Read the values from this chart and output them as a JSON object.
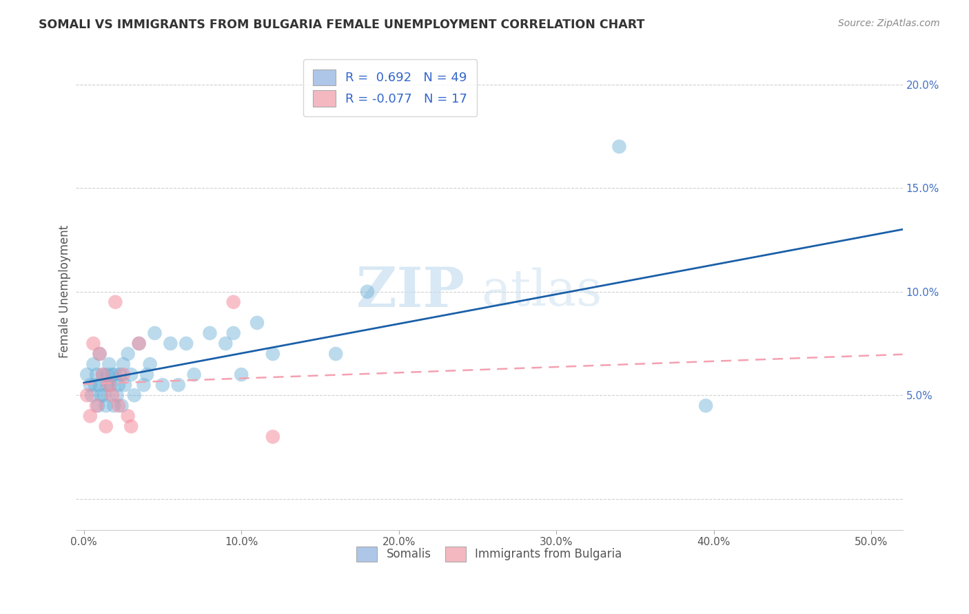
{
  "title": "SOMALI VS IMMIGRANTS FROM BULGARIA FEMALE UNEMPLOYMENT CORRELATION CHART",
  "source": "Source: ZipAtlas.com",
  "ylabel": "Female Unemployment",
  "x_ticks": [
    0.0,
    0.1,
    0.2,
    0.3,
    0.4,
    0.5
  ],
  "x_tick_labels": [
    "0.0%",
    "10.0%",
    "20.0%",
    "30.0%",
    "40.0%",
    "50.0%"
  ],
  "y_ticks": [
    0.0,
    0.05,
    0.1,
    0.15,
    0.2
  ],
  "y_tick_labels_right": [
    "",
    "5.0%",
    "10.0%",
    "15.0%",
    "20.0%"
  ],
  "xlim": [
    -0.005,
    0.52
  ],
  "ylim": [
    -0.015,
    0.215
  ],
  "legend_labels": [
    "R =  0.692   N = 49",
    "R = -0.077   N = 17"
  ],
  "legend_colors": [
    "#aec6e8",
    "#f4b8c1"
  ],
  "somali_color": "#6aaed6",
  "bulgaria_color": "#f48ea0",
  "somali_line_color": "#1a5fa8",
  "bulgaria_line_color": "#f4a0b0",
  "watermark_zip": "ZIP",
  "watermark_atlas": "atlas",
  "somali_x": [
    0.002,
    0.004,
    0.005,
    0.006,
    0.007,
    0.008,
    0.009,
    0.01,
    0.01,
    0.011,
    0.012,
    0.013,
    0.014,
    0.015,
    0.015,
    0.016,
    0.017,
    0.018,
    0.019,
    0.02,
    0.021,
    0.022,
    0.023,
    0.024,
    0.025,
    0.026,
    0.028,
    0.03,
    0.032,
    0.035,
    0.038,
    0.04,
    0.042,
    0.045,
    0.05,
    0.055,
    0.06,
    0.065,
    0.07,
    0.08,
    0.09,
    0.095,
    0.1,
    0.11,
    0.12,
    0.16,
    0.18,
    0.34,
    0.395
  ],
  "somali_y": [
    0.06,
    0.055,
    0.05,
    0.065,
    0.055,
    0.06,
    0.045,
    0.055,
    0.07,
    0.05,
    0.06,
    0.05,
    0.045,
    0.06,
    0.055,
    0.065,
    0.055,
    0.06,
    0.045,
    0.06,
    0.05,
    0.055,
    0.06,
    0.045,
    0.065,
    0.055,
    0.07,
    0.06,
    0.05,
    0.075,
    0.055,
    0.06,
    0.065,
    0.08,
    0.055,
    0.075,
    0.055,
    0.075,
    0.06,
    0.08,
    0.075,
    0.08,
    0.06,
    0.085,
    0.07,
    0.07,
    0.1,
    0.17,
    0.045
  ],
  "bulgaria_x": [
    0.002,
    0.004,
    0.006,
    0.008,
    0.01,
    0.012,
    0.014,
    0.016,
    0.018,
    0.02,
    0.022,
    0.025,
    0.028,
    0.03,
    0.035,
    0.095,
    0.12
  ],
  "bulgaria_y": [
    0.05,
    0.04,
    0.075,
    0.045,
    0.07,
    0.06,
    0.035,
    0.055,
    0.05,
    0.095,
    0.045,
    0.06,
    0.04,
    0.035,
    0.075,
    0.095,
    0.03
  ],
  "grid_color": "#d0d0d0",
  "bg_color": "#ffffff"
}
